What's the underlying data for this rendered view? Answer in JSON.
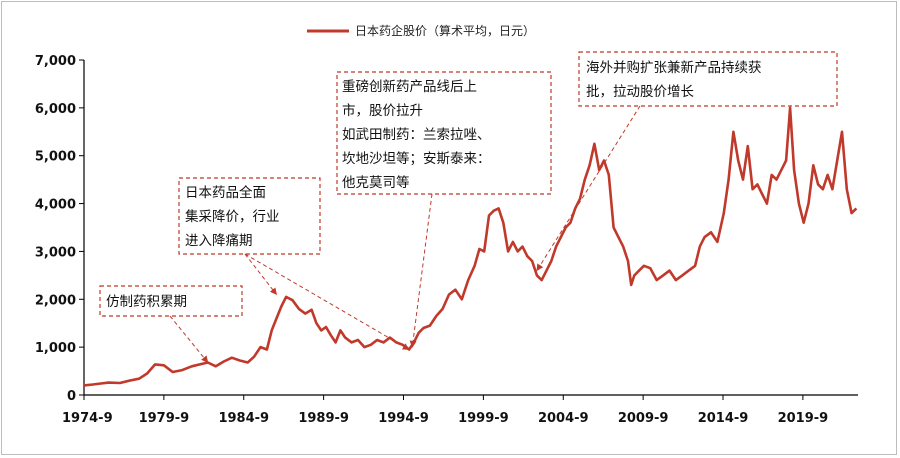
{
  "colors": {
    "line": "#c0392b",
    "annotation_border": "#c0392b",
    "axis": "#000000"
  },
  "chart_data": {
    "type": "line",
    "title": "",
    "xlabel": "",
    "ylabel": "",
    "x_range": [
      1974.75,
      2023.2
    ],
    "ylim": [
      0,
      7000
    ],
    "grid": false,
    "legend_position": "top-center",
    "y_ticks": [
      0,
      1000,
      2000,
      3000,
      4000,
      5000,
      6000,
      7000
    ],
    "y_tick_labels": [
      "0",
      "1,000",
      "2,000",
      "3,000",
      "4,000",
      "5,000",
      "6,000",
      "7,000"
    ],
    "x_ticks": [
      1974.75,
      1979.75,
      1984.75,
      1989.75,
      1994.75,
      1999.75,
      2004.75,
      2009.75,
      2014.75,
      2019.75
    ],
    "x_tick_labels": [
      "1974-9",
      "1979-9",
      "1984-9",
      "1989-9",
      "1994-9",
      "1999-9",
      "2004-9",
      "2009-9",
      "2014-9",
      "2019-9"
    ],
    "series": [
      {
        "name": "日本药企股价（算术平均，日元）",
        "x": [
          1974.75,
          1975.3,
          1975.8,
          1976.3,
          1977.0,
          1977.6,
          1978.2,
          1978.7,
          1979.2,
          1979.75,
          1980.3,
          1980.9,
          1981.5,
          1982.0,
          1982.5,
          1983.0,
          1983.5,
          1984.0,
          1984.5,
          1985.0,
          1985.4,
          1985.8,
          1986.2,
          1986.5,
          1986.8,
          1987.1,
          1987.4,
          1987.8,
          1988.2,
          1988.6,
          1989.0,
          1989.3,
          1989.6,
          1989.9,
          1990.2,
          1990.5,
          1990.8,
          1991.1,
          1991.5,
          1991.9,
          1992.3,
          1992.7,
          1993.1,
          1993.5,
          1993.9,
          1994.3,
          1994.7,
          1995.1,
          1995.4,
          1995.7,
          1996.0,
          1996.4,
          1996.8,
          1997.2,
          1997.6,
          1998.0,
          1998.4,
          1998.8,
          1999.2,
          1999.5,
          1999.8,
          2000.1,
          2000.4,
          2000.7,
          2001.0,
          2001.3,
          2001.6,
          2001.9,
          2002.2,
          2002.5,
          2002.8,
          2003.1,
          2003.4,
          2003.7,
          2004.0,
          2004.3,
          2004.6,
          2004.9,
          2005.2,
          2005.5,
          2005.8,
          2006.1,
          2006.4,
          2006.7,
          2007.0,
          2007.3,
          2007.6,
          2007.9,
          2008.2,
          2008.5,
          2008.8,
          2009.0,
          2009.2,
          2009.5,
          2009.8,
          2010.2,
          2010.6,
          2011.0,
          2011.4,
          2011.8,
          2012.2,
          2012.6,
          2013.0,
          2013.3,
          2013.6,
          2014.0,
          2014.4,
          2014.8,
          2015.1,
          2015.4,
          2015.7,
          2016.0,
          2016.3,
          2016.6,
          2016.9,
          2017.2,
          2017.5,
          2017.8,
          2018.1,
          2018.4,
          2018.7,
          2018.95,
          2019.2,
          2019.5,
          2019.8,
          2020.1,
          2020.4,
          2020.7,
          2021.0,
          2021.3,
          2021.6,
          2021.9,
          2022.2,
          2022.5,
          2022.8,
          2023.1
        ],
        "values": [
          200,
          220,
          240,
          260,
          250,
          300,
          340,
          450,
          640,
          620,
          480,
          520,
          600,
          640,
          680,
          600,
          700,
          780,
          720,
          680,
          800,
          1000,
          950,
          1350,
          1600,
          1850,
          2050,
          1980,
          1800,
          1700,
          1780,
          1500,
          1350,
          1420,
          1250,
          1100,
          1350,
          1200,
          1100,
          1150,
          1000,
          1050,
          1150,
          1100,
          1200,
          1100,
          1050,
          950,
          1100,
          1300,
          1400,
          1450,
          1650,
          1800,
          2100,
          2200,
          2000,
          2400,
          2700,
          3050,
          3000,
          3750,
          3850,
          3900,
          3600,
          3000,
          3200,
          3000,
          3100,
          2900,
          2800,
          2500,
          2400,
          2600,
          2800,
          3100,
          3300,
          3500,
          3600,
          3900,
          4100,
          4500,
          4800,
          5250,
          4700,
          4900,
          4600,
          3500,
          3300,
          3100,
          2800,
          2300,
          2500,
          2600,
          2700,
          2650,
          2400,
          2500,
          2600,
          2400,
          2500,
          2600,
          2700,
          3100,
          3300,
          3400,
          3200,
          3800,
          4500,
          5500,
          4900,
          4500,
          5200,
          4300,
          4400,
          4200,
          4000,
          4600,
          4500,
          4700,
          4900,
          6000,
          4700,
          4000,
          3600,
          4000,
          4800,
          4400,
          4300,
          4600,
          4300,
          4900,
          5500,
          4300,
          3800,
          3900
        ]
      }
    ],
    "annotations": [
      {
        "lines": [
          "仿制药积累期"
        ],
        "target": [
          1982.5,
          680
        ]
      },
      {
        "lines": [
          "日本药品全面",
          "集采降价，行业",
          "进入降痛期"
        ],
        "targets": [
          [
            1986.8,
            2100
          ],
          [
            1995.1,
            950
          ]
        ]
      },
      {
        "lines": [
          "重磅创新药产品线后上",
          "市，股价拉升",
          "如武田制药：兰索拉唑、",
          "坎地沙坦等；安斯泰来：",
          "他克莫司等"
        ],
        "target": [
          1995.3,
          1000
        ]
      },
      {
        "lines": [
          "海外并购扩张兼新产品持续获",
          "批，拉动股价增长"
        ],
        "target": [
          2003.1,
          2600
        ]
      }
    ]
  }
}
